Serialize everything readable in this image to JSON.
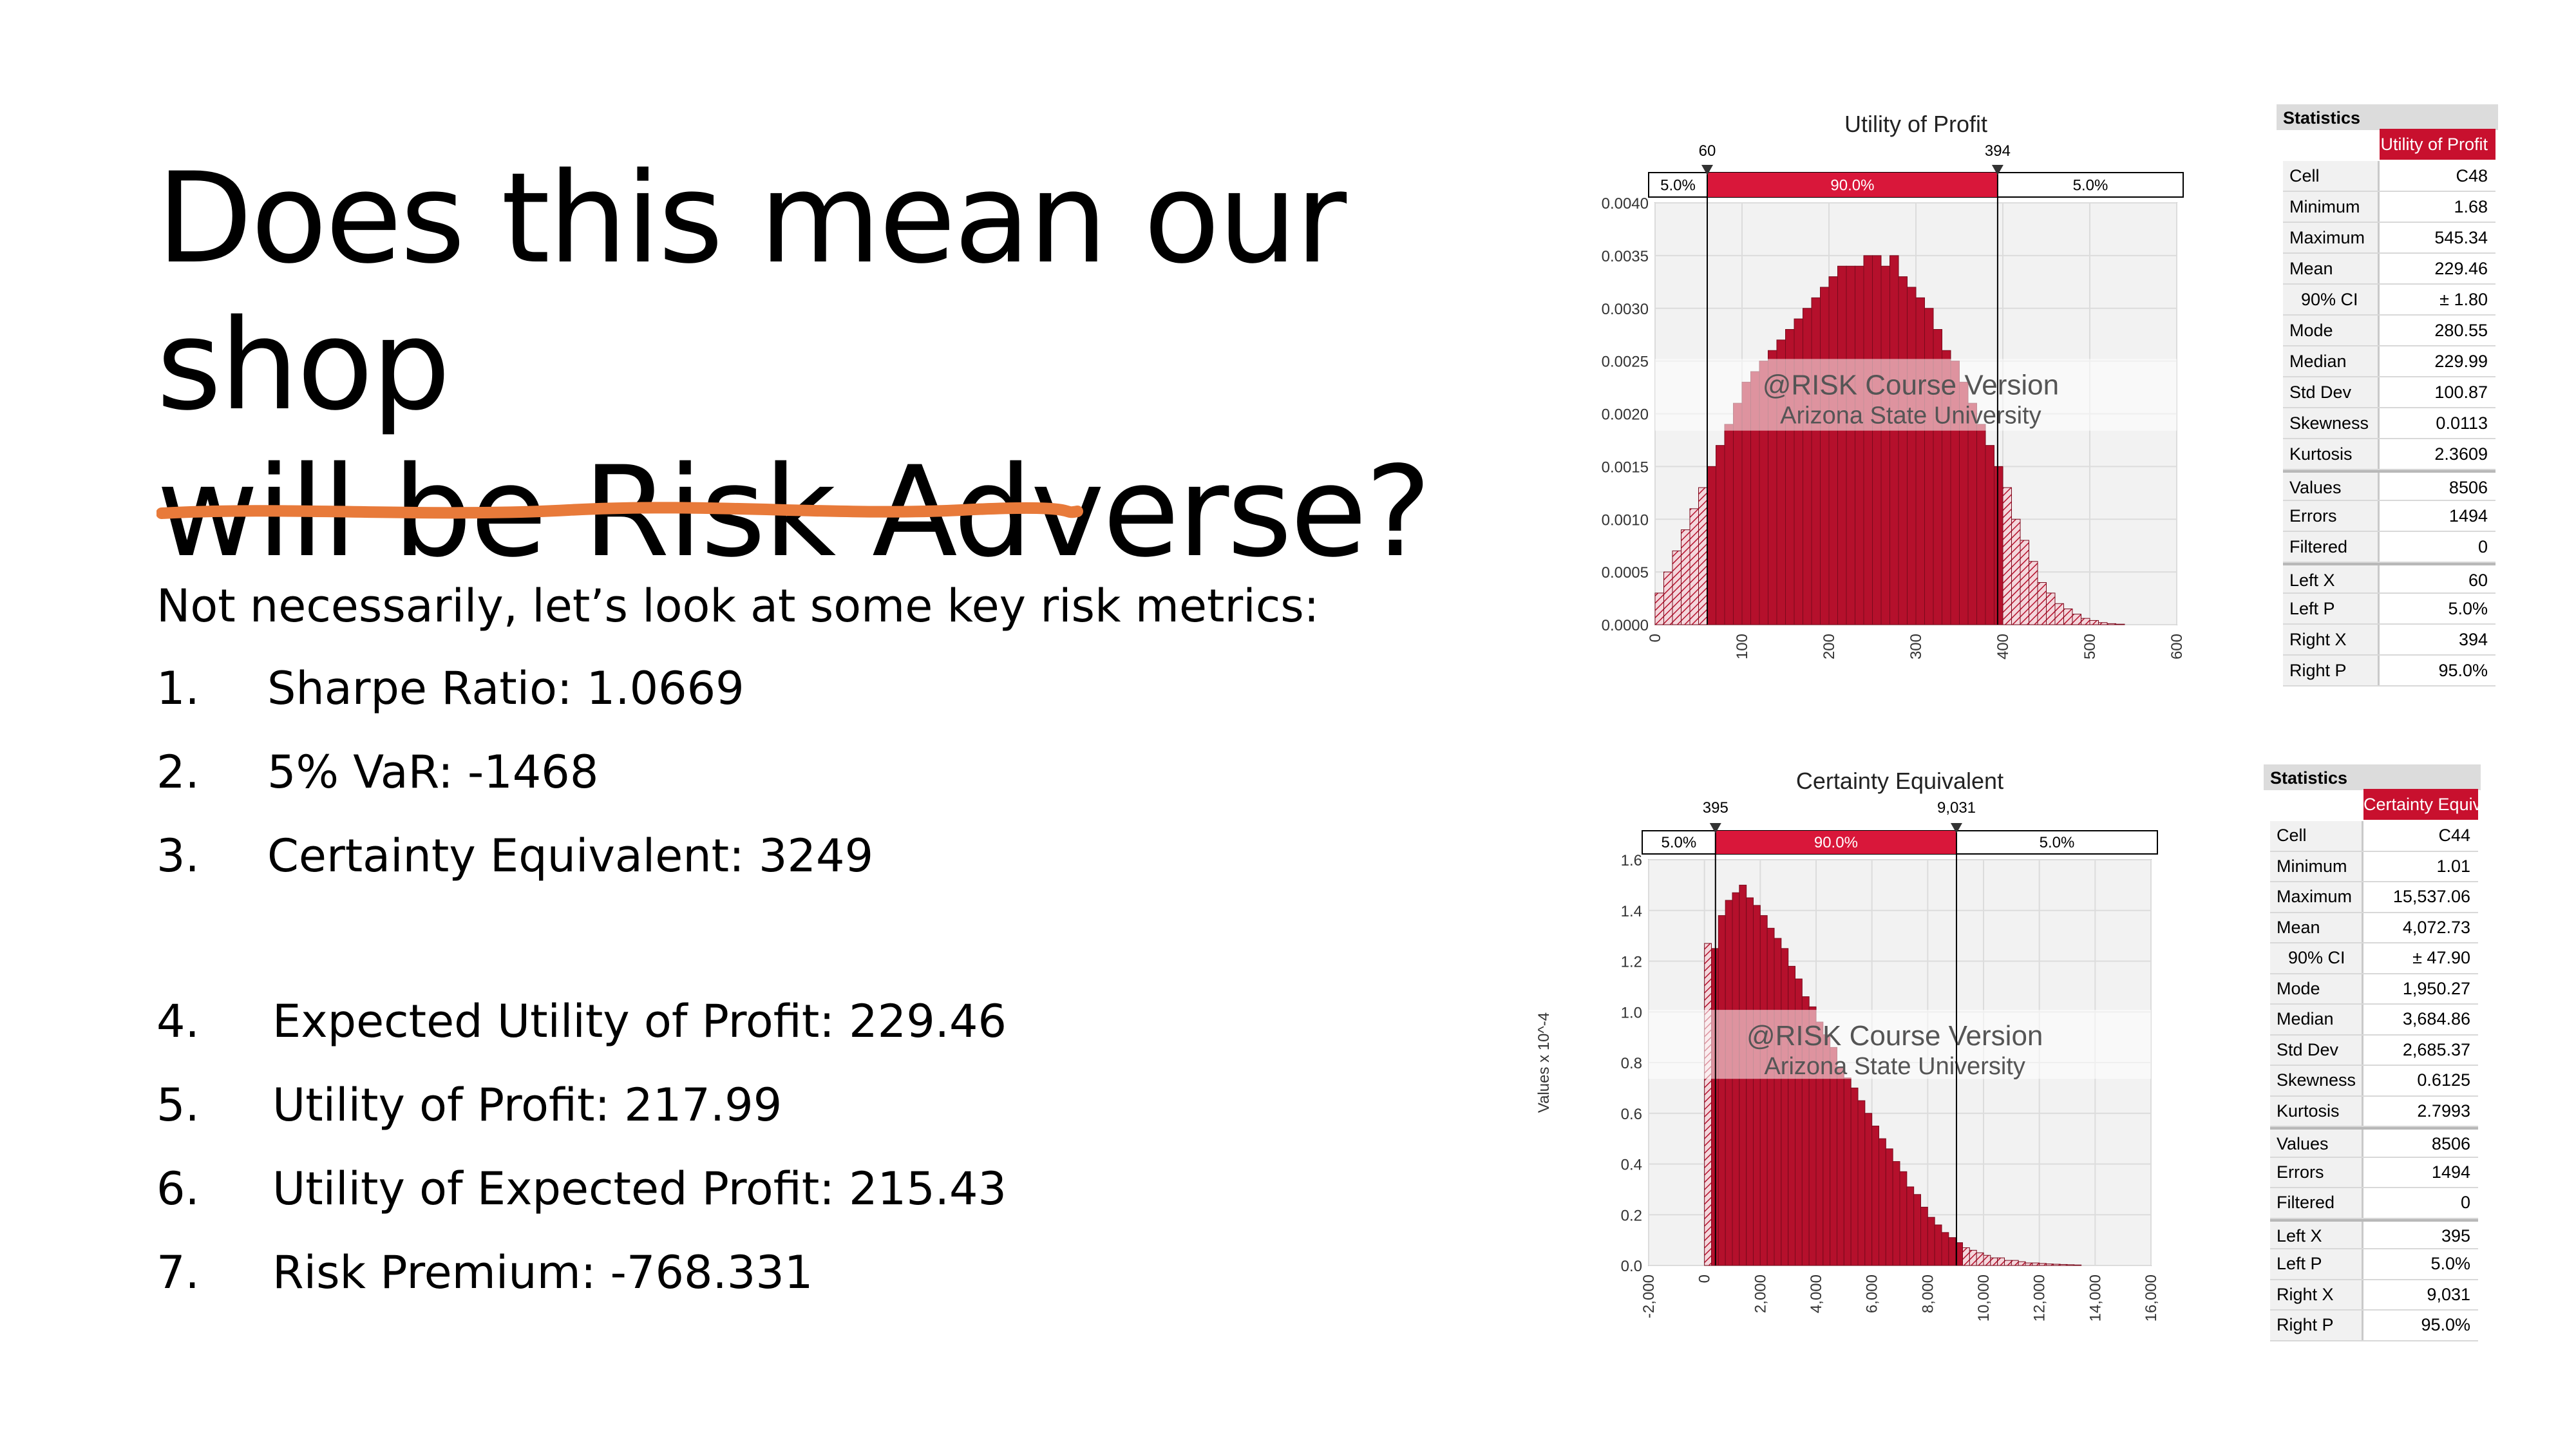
{
  "slide": {
    "title_line1": "Does this mean our shop",
    "title_line2": "will be Risk Adverse?",
    "intro": "Not necessarily, let’s look at some key risk metrics:",
    "items": [
      {
        "num": "1.",
        "text": "Sharpe Ratio: 1.0669"
      },
      {
        "num": "2.",
        "text": "5% VaR: -1468"
      },
      {
        "num": "3.",
        "text": "Certainty Equivalent: 3249"
      },
      {
        "num": "4.",
        "text": "Expected Utility of Profit: 229.46"
      },
      {
        "num": "5.",
        "text": "Utility of Profit: 217.99"
      },
      {
        "num": "6.",
        "text": "Utility of Expected Profit: 215.43"
      },
      {
        "num": "7.",
        "text": "Risk Premium: -768.331"
      }
    ],
    "accent_color": "#e87a3a"
  },
  "chart_data": [
    {
      "type": "bar",
      "title": "Utility of Profit",
      "xlabel": "",
      "ylabel": "",
      "xlim": [
        0,
        600
      ],
      "ylim": [
        0,
        0.004
      ],
      "x_ticks": [
        "0",
        "100",
        "200",
        "300",
        "400",
        "500",
        "600"
      ],
      "y_ticks": [
        "0.0000",
        "0.0005",
        "0.0010",
        "0.0015",
        "0.0020",
        "0.0025",
        "0.0030",
        "0.0035",
        "0.0040"
      ],
      "bin_width": 10,
      "bin_start": 0,
      "values": [
        0.0003,
        0.0005,
        0.0007,
        0.0009,
        0.0011,
        0.0013,
        0.0015,
        0.0017,
        0.0019,
        0.0021,
        0.0023,
        0.0024,
        0.0025,
        0.0026,
        0.0027,
        0.0028,
        0.0029,
        0.003,
        0.0031,
        0.0032,
        0.0033,
        0.0034,
        0.0034,
        0.0034,
        0.0035,
        0.0035,
        0.0034,
        0.0035,
        0.0033,
        0.0032,
        0.0031,
        0.003,
        0.0028,
        0.0026,
        0.0025,
        0.0023,
        0.0021,
        0.0019,
        0.0017,
        0.0015,
        0.0013,
        0.001,
        0.0008,
        0.0006,
        0.0004,
        0.0003,
        0.0002,
        0.00015,
        0.0001,
        6e-05,
        4e-05,
        2e-05,
        1e-05,
        5e-06
      ],
      "left_x": "60",
      "right_x": "394",
      "left_x_value": 60,
      "right_x_value": 394,
      "band_labels": [
        "5.0%",
        "90.0%",
        "5.0%"
      ],
      "watermark": [
        "@RISK Course Version",
        "Arizona State University"
      ],
      "color": "#b5102c",
      "grid": true,
      "stats": {
        "title": "Statistics",
        "header": "Utility of Profit",
        "rows": [
          [
            "Cell",
            "C48"
          ],
          [
            "Minimum",
            "1.68"
          ],
          [
            "Maximum",
            "545.34"
          ],
          [
            "Mean",
            "229.46"
          ],
          [
            "90% CI",
            "± 1.80"
          ],
          [
            "Mode",
            "280.55"
          ],
          [
            "Median",
            "229.99"
          ],
          [
            "Std Dev",
            "100.87"
          ],
          [
            "Skewness",
            "0.0113"
          ],
          [
            "Kurtosis",
            "2.3609"
          ],
          [
            "Values",
            "8506"
          ],
          [
            "Errors",
            "1494"
          ],
          [
            "Filtered",
            "0"
          ],
          [
            "Left X",
            "60"
          ],
          [
            "Left P",
            "5.0%"
          ],
          [
            "Right X",
            "394"
          ],
          [
            "Right P",
            "95.0%"
          ]
        ]
      }
    },
    {
      "type": "bar",
      "title": "Certainty Equivalent",
      "xlabel": "",
      "ylabel": "Values x 10^-4",
      "xlim": [
        -2000,
        16000
      ],
      "ylim": [
        0,
        1.6
      ],
      "x_ticks": [
        "-2,000",
        "0",
        "2,000",
        "4,000",
        "6,000",
        "8,000",
        "10,000",
        "12,000",
        "14,000",
        "16,000"
      ],
      "y_ticks": [
        "0.0",
        "0.2",
        "0.4",
        "0.6",
        "0.8",
        "1.0",
        "1.2",
        "1.4",
        "1.6"
      ],
      "bin_width": 250,
      "bin_start": 0,
      "values": [
        1.27,
        1.25,
        1.38,
        1.44,
        1.47,
        1.5,
        1.45,
        1.42,
        1.38,
        1.33,
        1.29,
        1.25,
        1.18,
        1.13,
        1.06,
        1.02,
        0.96,
        0.91,
        0.86,
        0.78,
        0.74,
        0.7,
        0.65,
        0.6,
        0.55,
        0.5,
        0.46,
        0.41,
        0.37,
        0.31,
        0.28,
        0.23,
        0.19,
        0.16,
        0.13,
        0.11,
        0.09,
        0.07,
        0.06,
        0.05,
        0.04,
        0.03,
        0.03,
        0.02,
        0.02,
        0.015,
        0.01,
        0.01,
        0.008,
        0.006,
        0.005,
        0.004,
        0.003,
        0.002
      ],
      "left_x": "395",
      "right_x": "9,031",
      "left_x_value": 395,
      "right_x_value": 9031,
      "band_labels": [
        "5.0%",
        "90.0%",
        "5.0%"
      ],
      "watermark": [
        "@RISK Course Version",
        "Arizona State University"
      ],
      "color": "#b5102c",
      "grid": true,
      "stats": {
        "title": "Statistics",
        "header": "Certainty Equiv...",
        "rows": [
          [
            "Cell",
            "C44"
          ],
          [
            "Minimum",
            "1.01"
          ],
          [
            "Maximum",
            "15,537.06"
          ],
          [
            "Mean",
            "4,072.73"
          ],
          [
            "90% CI",
            "± 47.90"
          ],
          [
            "Mode",
            "1,950.27"
          ],
          [
            "Median",
            "3,684.86"
          ],
          [
            "Std Dev",
            "2,685.37"
          ],
          [
            "Skewness",
            "0.6125"
          ],
          [
            "Kurtosis",
            "2.7993"
          ],
          [
            "Values",
            "8506"
          ],
          [
            "Errors",
            "1494"
          ],
          [
            "Filtered",
            "0"
          ],
          [
            "Left X",
            "395"
          ],
          [
            "Left P",
            "5.0%"
          ],
          [
            "Right X",
            "9,031"
          ],
          [
            "Right P",
            "95.0%"
          ]
        ]
      }
    }
  ]
}
